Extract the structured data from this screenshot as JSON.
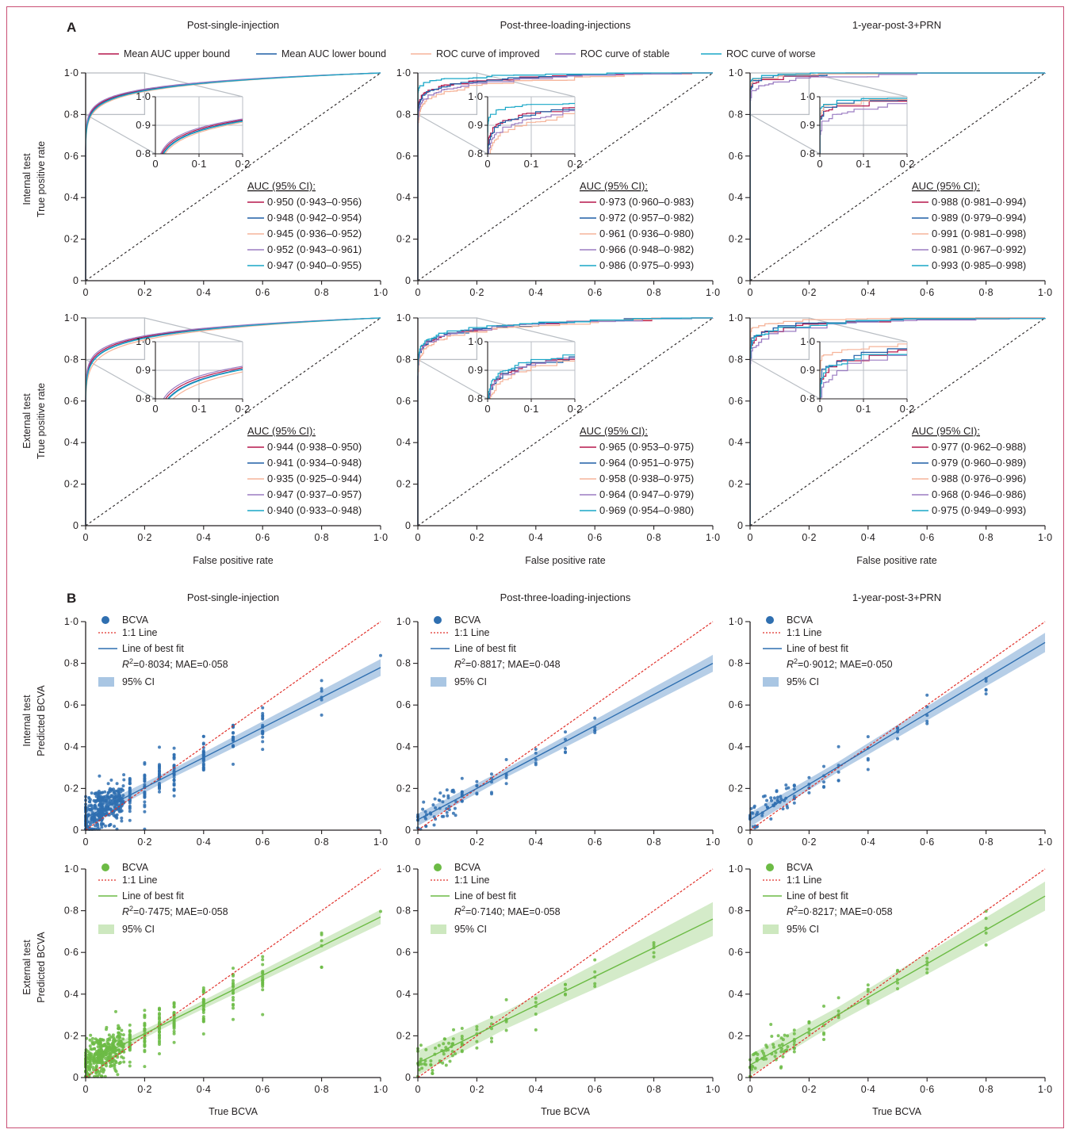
{
  "figure": {
    "panel_a_letter": "A",
    "panel_b_letter": "B",
    "columns": [
      "Post-single-injection",
      "Post-three-loading-injections",
      "1-year-post-3+PRN"
    ],
    "rows_a": [
      {
        "row_label": "Internal test",
        "y_label": "True positive rate"
      },
      {
        "row_label": "External test",
        "y_label": "True positive rate"
      }
    ],
    "rows_b": [
      {
        "row_label": "Internal test",
        "y_label": "Predicted BCVA"
      },
      {
        "row_label": "External test",
        "y_label": "Predicted BCVA"
      }
    ],
    "x_label_a": "False positive rate",
    "x_label_b": "True BCVA",
    "colors": {
      "upper": "#b5174b",
      "lower": "#1f5fa6",
      "improved": "#f6b49a",
      "stable": "#9b7cc2",
      "worse": "#19a7c7",
      "diag": "#231f20",
      "inset_box": "#b9bec4",
      "blue_points": "#2f6fb0",
      "blue_ci": "#a9c6e3",
      "green_points": "#6cbb45",
      "green_ci": "#cde8bf",
      "oneone": "#e0302a",
      "frame": "#c94f75"
    }
  },
  "legend_a": {
    "items": [
      {
        "key": "upper",
        "label": "Mean AUC upper bound"
      },
      {
        "key": "lower",
        "label": "Mean AUC lower bound"
      },
      {
        "key": "improved",
        "label": "ROC curve of improved"
      },
      {
        "key": "stable",
        "label": "ROC curve of stable"
      },
      {
        "key": "worse",
        "label": "ROC curve of worse"
      }
    ]
  },
  "chart_data": [
    {
      "type": "line",
      "panel": "A",
      "row": "Internal test",
      "column": "Post-single-injection",
      "xlabel": "False positive rate",
      "ylabel": "True positive rate",
      "xlim": [
        0,
        1
      ],
      "ylim": [
        0,
        1
      ],
      "xticks": [
        "0",
        "0·2",
        "0·4",
        "0·6",
        "0·8",
        "1·0"
      ],
      "yticks": [
        "0",
        "0·2",
        "0·4",
        "0·6",
        "0·8",
        "1·0"
      ],
      "inset": {
        "xlim": [
          0,
          0.2
        ],
        "ylim": [
          0.8,
          1.0
        ],
        "xticks": [
          "0",
          "0·1",
          "0·2"
        ],
        "yticks": [
          "0·8",
          "0·9",
          "1·0"
        ]
      },
      "auc_header": "AUC (95% CI):",
      "auc": [
        {
          "key": "upper",
          "text": "0·950 (0·943–0·956)"
        },
        {
          "key": "lower",
          "text": "0·948 (0·942–0·954)"
        },
        {
          "key": "improved",
          "text": "0·945 (0·936–0·952)"
        },
        {
          "key": "stable",
          "text": "0·952 (0·943–0·961)"
        },
        {
          "key": "worse",
          "text": "0·947 (0·940–0·955)"
        }
      ],
      "series": [
        {
          "name": "upper",
          "auc": 0.95
        },
        {
          "name": "lower",
          "auc": 0.948
        },
        {
          "name": "improved",
          "auc": 0.945
        },
        {
          "name": "stable",
          "auc": 0.952
        },
        {
          "name": "worse",
          "auc": 0.947
        }
      ]
    },
    {
      "type": "line",
      "panel": "A",
      "row": "Internal test",
      "column": "Post-three-loading-injections",
      "xlabel": "False positive rate",
      "ylabel": "",
      "xlim": [
        0,
        1
      ],
      "ylim": [
        0,
        1
      ],
      "xticks": [
        "0",
        "0·2",
        "0·4",
        "0·6",
        "0·8",
        "1·0"
      ],
      "yticks": [
        "0",
        "0·2",
        "0·4",
        "0·6",
        "0·8",
        "1·0"
      ],
      "inset": {
        "xlim": [
          0,
          0.2
        ],
        "ylim": [
          0.8,
          1.0
        ],
        "xticks": [
          "0",
          "0·1",
          "0·2"
        ],
        "yticks": [
          "0·8",
          "0·9",
          "1·0"
        ]
      },
      "auc_header": "AUC (95% CI):",
      "auc": [
        {
          "key": "upper",
          "text": "0·973 (0·960–0·983)"
        },
        {
          "key": "lower",
          "text": "0·972 (0·957–0·982)"
        },
        {
          "key": "improved",
          "text": "0·961 (0·936–0·980)"
        },
        {
          "key": "stable",
          "text": "0·966 (0·948–0·982)"
        },
        {
          "key": "worse",
          "text": "0·986 (0·975–0·993)"
        }
      ],
      "series": [
        {
          "name": "upper",
          "auc": 0.973
        },
        {
          "name": "lower",
          "auc": 0.972
        },
        {
          "name": "improved",
          "auc": 0.961
        },
        {
          "name": "stable",
          "auc": 0.966
        },
        {
          "name": "worse",
          "auc": 0.986
        }
      ]
    },
    {
      "type": "line",
      "panel": "A",
      "row": "Internal test",
      "column": "1-year-post-3+PRN",
      "xlabel": "False positive rate",
      "ylabel": "",
      "xlim": [
        0,
        1
      ],
      "ylim": [
        0,
        1
      ],
      "xticks": [
        "0",
        "0·2",
        "0·4",
        "0·6",
        "0·8",
        "1·0"
      ],
      "yticks": [
        "0",
        "0·2",
        "0·4",
        "0·6",
        "0·8",
        "1·0"
      ],
      "inset": {
        "xlim": [
          0,
          0.2
        ],
        "ylim": [
          0.8,
          1.0
        ],
        "xticks": [
          "0",
          "0·1",
          "0·2"
        ],
        "yticks": [
          "0·8",
          "0·9",
          "1·0"
        ]
      },
      "auc_header": "AUC (95% CI):",
      "auc": [
        {
          "key": "upper",
          "text": "0·988 (0·981–0·994)"
        },
        {
          "key": "lower",
          "text": "0·989 (0·979–0·994)"
        },
        {
          "key": "improved",
          "text": "0·991 (0·981–0·998)"
        },
        {
          "key": "stable",
          "text": "0·981 (0·967–0·992)"
        },
        {
          "key": "worse",
          "text": "0·993 (0·985–0·998)"
        }
      ],
      "series": [
        {
          "name": "upper",
          "auc": 0.988
        },
        {
          "name": "lower",
          "auc": 0.989
        },
        {
          "name": "improved",
          "auc": 0.991
        },
        {
          "name": "stable",
          "auc": 0.981
        },
        {
          "name": "worse",
          "auc": 0.993
        }
      ]
    },
    {
      "type": "line",
      "panel": "A",
      "row": "External test",
      "column": "Post-single-injection",
      "xlabel": "False positive rate",
      "ylabel": "True positive rate",
      "xlim": [
        0,
        1
      ],
      "ylim": [
        0,
        1
      ],
      "xticks": [
        "0",
        "0·2",
        "0·4",
        "0·6",
        "0·8",
        "1·0"
      ],
      "yticks": [
        "0",
        "0·2",
        "0·4",
        "0·6",
        "0·8",
        "1·0"
      ],
      "inset": {
        "xlim": [
          0,
          0.2
        ],
        "ylim": [
          0.8,
          1.0
        ],
        "xticks": [
          "0",
          "0·1",
          "0·2"
        ],
        "yticks": [
          "0·8",
          "0·9",
          "1·0"
        ]
      },
      "auc_header": "AUC (95% CI):",
      "auc": [
        {
          "key": "upper",
          "text": "0·944 (0·938–0·950)"
        },
        {
          "key": "lower",
          "text": "0·941 (0·934–0·948)"
        },
        {
          "key": "improved",
          "text": "0·935 (0·925–0·944)"
        },
        {
          "key": "stable",
          "text": "0·947 (0·937–0·957)"
        },
        {
          "key": "worse",
          "text": "0·940 (0·933–0·948)"
        }
      ],
      "series": [
        {
          "name": "upper",
          "auc": 0.944
        },
        {
          "name": "lower",
          "auc": 0.941
        },
        {
          "name": "improved",
          "auc": 0.935
        },
        {
          "name": "stable",
          "auc": 0.947
        },
        {
          "name": "worse",
          "auc": 0.94
        }
      ]
    },
    {
      "type": "line",
      "panel": "A",
      "row": "External test",
      "column": "Post-three-loading-injections",
      "xlabel": "False positive rate",
      "ylabel": "",
      "xlim": [
        0,
        1
      ],
      "ylim": [
        0,
        1
      ],
      "xticks": [
        "0",
        "0·2",
        "0·4",
        "0·6",
        "0·8",
        "1·0"
      ],
      "yticks": [
        "0",
        "0·2",
        "0·4",
        "0·6",
        "0·8",
        "1·0"
      ],
      "inset": {
        "xlim": [
          0,
          0.2
        ],
        "ylim": [
          0.8,
          1.0
        ],
        "xticks": [
          "0",
          "0·1",
          "0·2"
        ],
        "yticks": [
          "0·8",
          "0·9",
          "1·0"
        ]
      },
      "auc_header": "AUC (95% CI):",
      "auc": [
        {
          "key": "upper",
          "text": "0·965 (0·953–0·975)"
        },
        {
          "key": "lower",
          "text": "0·964 (0·951–0·975)"
        },
        {
          "key": "improved",
          "text": "0·958 (0·938–0·975)"
        },
        {
          "key": "stable",
          "text": "0·964 (0·947–0·979)"
        },
        {
          "key": "worse",
          "text": "0·969 (0·954–0·980)"
        }
      ],
      "series": [
        {
          "name": "upper",
          "auc": 0.965
        },
        {
          "name": "lower",
          "auc": 0.964
        },
        {
          "name": "improved",
          "auc": 0.958
        },
        {
          "name": "stable",
          "auc": 0.964
        },
        {
          "name": "worse",
          "auc": 0.969
        }
      ]
    },
    {
      "type": "line",
      "panel": "A",
      "row": "External test",
      "column": "1-year-post-3+PRN",
      "xlabel": "False positive rate",
      "ylabel": "",
      "xlim": [
        0,
        1
      ],
      "ylim": [
        0,
        1
      ],
      "xticks": [
        "0",
        "0·2",
        "0·4",
        "0·6",
        "0·8",
        "1·0"
      ],
      "yticks": [
        "0",
        "0·2",
        "0·4",
        "0·6",
        "0·8",
        "1·0"
      ],
      "inset": {
        "xlim": [
          0,
          0.2
        ],
        "ylim": [
          0.8,
          1.0
        ],
        "xticks": [
          "0",
          "0·1",
          "0·2"
        ],
        "yticks": [
          "0·8",
          "0·9",
          "1·0"
        ]
      },
      "auc_header": "AUC (95% CI):",
      "auc": [
        {
          "key": "upper",
          "text": "0·977 (0·962–0·988)"
        },
        {
          "key": "lower",
          "text": "0·979 (0·960–0·989)"
        },
        {
          "key": "improved",
          "text": "0·988 (0·976–0·996)"
        },
        {
          "key": "stable",
          "text": "0·968 (0·946–0·986)"
        },
        {
          "key": "worse",
          "text": "0·975 (0·949–0·993)"
        }
      ],
      "series": [
        {
          "name": "upper",
          "auc": 0.977
        },
        {
          "name": "lower",
          "auc": 0.979
        },
        {
          "name": "improved",
          "auc": 0.988
        },
        {
          "name": "stable",
          "auc": 0.968
        },
        {
          "name": "worse",
          "auc": 0.975
        }
      ]
    },
    {
      "type": "scatter",
      "panel": "B",
      "row": "Internal test",
      "column": "Post-single-injection",
      "palette": "blue",
      "xlabel": "True BCVA",
      "ylabel": "Predicted BCVA",
      "xlim": [
        0,
        1
      ],
      "ylim": [
        0,
        1
      ],
      "xticks": [
        "0",
        "0·2",
        "0·4",
        "0·6",
        "0·8",
        "1·0"
      ],
      "yticks": [
        "0",
        "0·2",
        "0·4",
        "0·6",
        "0·8",
        "1·0"
      ],
      "legend": {
        "points": "BCVA",
        "oneone": "1:1 Line",
        "fit": "Line of best fit",
        "stats": "=0·8034; MAE=0·058",
        "ci": "95% CI"
      },
      "fit": {
        "intercept": 0.06,
        "slope": 0.72,
        "ci_halfwidth": 0.035
      },
      "true_levels": [
        0,
        0.02,
        0.04,
        0.05,
        0.06,
        0.08,
        0.1,
        0.12,
        0.15,
        0.2,
        0.25,
        0.3,
        0.4,
        0.5,
        0.6,
        0.8,
        1.0
      ],
      "density": "high"
    },
    {
      "type": "scatter",
      "panel": "B",
      "row": "Internal test",
      "column": "Post-three-loading-injections",
      "palette": "blue",
      "xlabel": "True BCVA",
      "ylabel": "",
      "xlim": [
        0,
        1
      ],
      "ylim": [
        0,
        1
      ],
      "xticks": [
        "0",
        "0·2",
        "0·4",
        "0·6",
        "0·8",
        "1·0"
      ],
      "yticks": [
        "0",
        "0·2",
        "0·4",
        "0·6",
        "0·8",
        "1·0"
      ],
      "legend": {
        "points": "BCVA",
        "oneone": "1:1 Line",
        "fit": "Line of best fit",
        "stats": "=0·8817; MAE=0·048",
        "ci": "95% CI"
      },
      "fit": {
        "intercept": 0.05,
        "slope": 0.75,
        "ci_halfwidth": 0.035
      },
      "true_levels": [
        0,
        0.02,
        0.05,
        0.08,
        0.1,
        0.12,
        0.15,
        0.2,
        0.25,
        0.3,
        0.4,
        0.5,
        0.6
      ],
      "density": "low"
    },
    {
      "type": "scatter",
      "panel": "B",
      "row": "Internal test",
      "column": "1-year-post-3+PRN",
      "palette": "blue",
      "xlabel": "True BCVA",
      "ylabel": "",
      "xlim": [
        0,
        1
      ],
      "ylim": [
        0,
        1
      ],
      "xticks": [
        "0",
        "0·2",
        "0·4",
        "0·6",
        "0·8",
        "1·0"
      ],
      "yticks": [
        "0",
        "0·2",
        "0·4",
        "0·6",
        "0·8",
        "1·0"
      ],
      "legend": {
        "points": "BCVA",
        "oneone": "1:1 Line",
        "fit": "Line of best fit",
        "stats": "=0·9012; MAE=0·050",
        "ci": "95% CI"
      },
      "fit": {
        "intercept": 0.05,
        "slope": 0.85,
        "ci_halfwidth": 0.04
      },
      "true_levels": [
        0,
        0.02,
        0.05,
        0.08,
        0.1,
        0.12,
        0.15,
        0.2,
        0.25,
        0.3,
        0.4,
        0.5,
        0.6,
        0.8
      ],
      "density": "low"
    },
    {
      "type": "scatter",
      "panel": "B",
      "row": "External test",
      "column": "Post-single-injection",
      "palette": "green",
      "xlabel": "True BCVA",
      "ylabel": "Predicted BCVA",
      "xlim": [
        0,
        1
      ],
      "ylim": [
        0,
        1
      ],
      "xticks": [
        "0",
        "0·2",
        "0·4",
        "0·6",
        "0·8",
        "1·0"
      ],
      "yticks": [
        "0",
        "0·2",
        "0·4",
        "0·6",
        "0·8",
        "1·0"
      ],
      "legend": {
        "points": "BCVA",
        "oneone": "1:1 Line",
        "fit": "Line of best fit",
        "stats": "=0·7475; MAE=0·058",
        "ci": "95% CI"
      },
      "fit": {
        "intercept": 0.07,
        "slope": 0.7,
        "ci_halfwidth": 0.03
      },
      "true_levels": [
        0,
        0.02,
        0.04,
        0.05,
        0.06,
        0.08,
        0.1,
        0.12,
        0.15,
        0.2,
        0.25,
        0.3,
        0.4,
        0.5,
        0.6,
        0.8,
        1.0
      ],
      "density": "high"
    },
    {
      "type": "scatter",
      "panel": "B",
      "row": "External test",
      "column": "Post-three-loading-injections",
      "palette": "green",
      "xlabel": "True BCVA",
      "ylabel": "",
      "xlim": [
        0,
        1
      ],
      "ylim": [
        0,
        1
      ],
      "xticks": [
        "0",
        "0·2",
        "0·4",
        "0·6",
        "0·8",
        "1·0"
      ],
      "yticks": [
        "0",
        "0·2",
        "0·4",
        "0·6",
        "0·8",
        "1·0"
      ],
      "legend": {
        "points": "BCVA",
        "oneone": "1:1 Line",
        "fit": "Line of best fit",
        "stats": "=0·7140; MAE=0·058",
        "ci": "95% CI"
      },
      "fit": {
        "intercept": 0.07,
        "slope": 0.69,
        "ci_halfwidth": 0.07
      },
      "true_levels": [
        0,
        0.02,
        0.05,
        0.08,
        0.1,
        0.12,
        0.15,
        0.2,
        0.25,
        0.3,
        0.4,
        0.5,
        0.6,
        0.8
      ],
      "density": "low"
    },
    {
      "type": "scatter",
      "panel": "B",
      "row": "External test",
      "column": "1-year-post-3+PRN",
      "palette": "green",
      "xlabel": "True BCVA",
      "ylabel": "",
      "xlim": [
        0,
        1
      ],
      "ylim": [
        0,
        1
      ],
      "xticks": [
        "0",
        "0·2",
        "0·4",
        "0·6",
        "0·8",
        "1·0"
      ],
      "yticks": [
        "0",
        "0·2",
        "0·4",
        "0·6",
        "0·8",
        "1·0"
      ],
      "legend": {
        "points": "BCVA",
        "oneone": "1:1 Line",
        "fit": "Line of best fit",
        "stats": "=0·8217; MAE=0·058",
        "ci": "95% CI"
      },
      "fit": {
        "intercept": 0.06,
        "slope": 0.81,
        "ci_halfwidth": 0.06
      },
      "true_levels": [
        0,
        0.02,
        0.05,
        0.08,
        0.1,
        0.12,
        0.15,
        0.2,
        0.25,
        0.3,
        0.4,
        0.5,
        0.6,
        0.8
      ],
      "density": "low"
    }
  ]
}
